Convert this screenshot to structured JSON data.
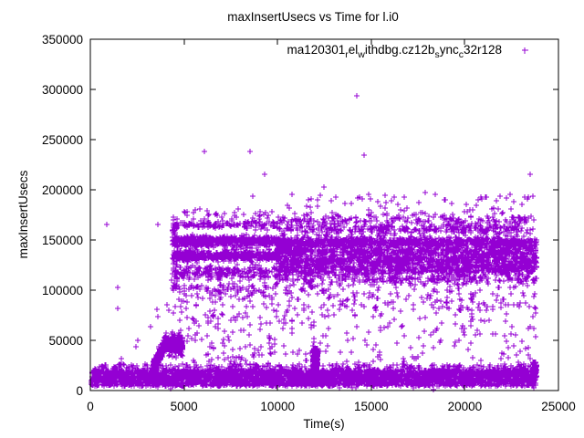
{
  "chart_data": {
    "type": "scatter",
    "title": "maxInsertUsecs vs Time for l.i0",
    "xlabel": "Time(s)",
    "ylabel": "maxInsertUsecs",
    "xlim": [
      0,
      25000
    ],
    "ylim": [
      0,
      350000
    ],
    "xticks": [
      0,
      5000,
      10000,
      15000,
      20000,
      25000
    ],
    "yticks": [
      0,
      50000,
      100000,
      150000,
      200000,
      250000,
      300000,
      350000
    ],
    "grid": false,
    "marker": "+",
    "marker_color": "#9400D3",
    "frame_color": "#000000",
    "legend": {
      "position": "top-right-inside",
      "label_plain": "ma120301_rel_withdbg.cz12b_sync_c32r128",
      "label_segments": [
        {
          "text": "ma120301",
          "sub": false
        },
        {
          "text": "r",
          "sub": true
        },
        {
          "text": "el",
          "sub": false
        },
        {
          "text": "w",
          "sub": true
        },
        {
          "text": "ithdbg.cz12b",
          "sub": false
        },
        {
          "text": "s",
          "sub": true
        },
        {
          "text": "ync",
          "sub": false
        },
        {
          "text": "c",
          "sub": true
        },
        {
          "text": "32r128",
          "sub": false
        }
      ]
    },
    "data_time_range": [
      0,
      23830
    ],
    "clusters": [
      {
        "name": "bottom-band-uniform",
        "dist": "uniform",
        "t0": 30,
        "t1": 23830,
        "y0": 4500,
        "y1": 20500,
        "n": 3200
      },
      {
        "name": "bottom-band-core",
        "dist": "gauss",
        "t0": 30,
        "t1": 23830,
        "y": 14000,
        "sd": 4500,
        "n": 500
      },
      {
        "name": "bottom-band-fringe",
        "dist": "uniform",
        "t0": 30,
        "t1": 23830,
        "y0": 20500,
        "y1": 26500,
        "n": 260
      },
      {
        "name": "ramp-3300-4000",
        "dist": "ramp",
        "t0": 3230,
        "t1": 4060,
        "y0": 17000,
        "y1": 50000,
        "sd": 3500,
        "n": 320
      },
      {
        "name": "post-ramp-blob",
        "dist": "gauss",
        "t0": 4030,
        "t1": 4950,
        "y": 45000,
        "sd": 4500,
        "n": 220
      },
      {
        "name": "left-band-148k",
        "dist": "gauss",
        "t0": 4480,
        "t1": 9950,
        "y": 148500,
        "sd": 2700,
        "n": 560
      },
      {
        "name": "left-band-134k",
        "dist": "gauss",
        "t0": 4420,
        "t1": 9950,
        "y": 134200,
        "sd": 2600,
        "n": 480
      },
      {
        "name": "left-band-165k",
        "dist": "gauss",
        "t0": 4400,
        "t1": 9950,
        "y": 165800,
        "sd": 2200,
        "n": 130
      },
      {
        "name": "left-band-117k",
        "dist": "gauss",
        "t0": 4500,
        "t1": 9950,
        "y": 117500,
        "sd": 3500,
        "n": 200
      },
      {
        "name": "left-band-100k",
        "dist": "gauss",
        "t0": 4550,
        "t1": 9950,
        "y": 100000,
        "sd": 4000,
        "n": 90
      },
      {
        "name": "left-mid-sparse",
        "dist": "uniform",
        "t0": 4250,
        "t1": 9950,
        "y0": 28000,
        "y1": 95000,
        "n": 150
      },
      {
        "name": "left-high-sparse",
        "dist": "uniform",
        "t0": 4600,
        "t1": 9950,
        "y0": 170000,
        "y1": 181000,
        "n": 30
      },
      {
        "name": "onset-column",
        "dist": "uniform",
        "t0": 4350,
        "t1": 4650,
        "y0": 95000,
        "y1": 168000,
        "n": 50
      },
      {
        "name": "dip-10k",
        "dist": "gauss",
        "t0": 9950,
        "t1": 10650,
        "y": 142000,
        "sd": 3000,
        "n": 70
      },
      {
        "name": "right-band-147k",
        "dist": "gauss",
        "t0": 9950,
        "t1": 23830,
        "y": 147300,
        "sd": 2700,
        "n": 950
      },
      {
        "name": "right-band-138k",
        "dist": "gauss",
        "t0": 9950,
        "t1": 23830,
        "y": 138500,
        "sd": 2400,
        "n": 550
      },
      {
        "name": "right-band-129k",
        "dist": "gauss",
        "t0": 9950,
        "t1": 23830,
        "y": 129500,
        "sd": 3300,
        "n": 800
      },
      {
        "name": "right-band-121k",
        "dist": "gauss",
        "t0": 9950,
        "t1": 23830,
        "y": 121000,
        "sd": 3300,
        "n": 650
      },
      {
        "name": "right-band-111k",
        "dist": "gauss",
        "t0": 9950,
        "t1": 23830,
        "y": 111000,
        "sd": 3800,
        "n": 330
      },
      {
        "name": "right-band-160k",
        "dist": "gauss",
        "t0": 9950,
        "t1": 23830,
        "y": 160500,
        "sd": 2800,
        "n": 300
      },
      {
        "name": "right-band-170k",
        "dist": "gauss",
        "t0": 9950,
        "t1": 23830,
        "y": 169800,
        "sd": 3200,
        "n": 210
      },
      {
        "name": "right-high-sparse",
        "dist": "uniform",
        "t0": 9950,
        "t1": 23830,
        "y0": 175000,
        "y1": 196000,
        "n": 65
      },
      {
        "name": "right-mid-sparse",
        "dist": "uniform",
        "t0": 9950,
        "t1": 23830,
        "y0": 78000,
        "y1": 104000,
        "n": 170
      },
      {
        "name": "right-low-sparse",
        "dist": "uniform",
        "t0": 9950,
        "t1": 23830,
        "y0": 28000,
        "y1": 78000,
        "n": 150
      },
      {
        "name": "spike-12000",
        "dist": "uniform",
        "t0": 11880,
        "t1": 12150,
        "y0": 14000,
        "y1": 42000,
        "n": 260
      },
      {
        "name": "end-bump",
        "dist": "uniform",
        "t0": 23640,
        "t1": 23830,
        "y0": 12000,
        "y1": 29000,
        "n": 100
      }
    ],
    "outlier_points": [
      [
        700,
        24000
      ],
      [
        877,
        165500
      ],
      [
        1462,
        103000
      ],
      [
        1462,
        82000
      ],
      [
        1657,
        31800
      ],
      [
        2437,
        43600
      ],
      [
        2534,
        50000
      ],
      [
        2900,
        26500
      ],
      [
        3216,
        63600
      ],
      [
        3580,
        80500
      ],
      [
        3625,
        74000
      ],
      [
        3606,
        165500
      ],
      [
        4100,
        85500
      ],
      [
        4200,
        80000
      ],
      [
        5068,
        177300
      ],
      [
        5160,
        174500
      ],
      [
        6092,
        238200
      ],
      [
        8529,
        238200
      ],
      [
        8675,
        193600
      ],
      [
        9309,
        215500
      ],
      [
        10917,
        170500
      ],
      [
        12476,
        202700
      ],
      [
        14230,
        294000
      ],
      [
        14620,
        234500
      ],
      [
        17900,
        197500
      ],
      [
        21880,
        193600
      ],
      [
        23200,
        192700
      ],
      [
        23492,
        215500
      ]
    ]
  }
}
